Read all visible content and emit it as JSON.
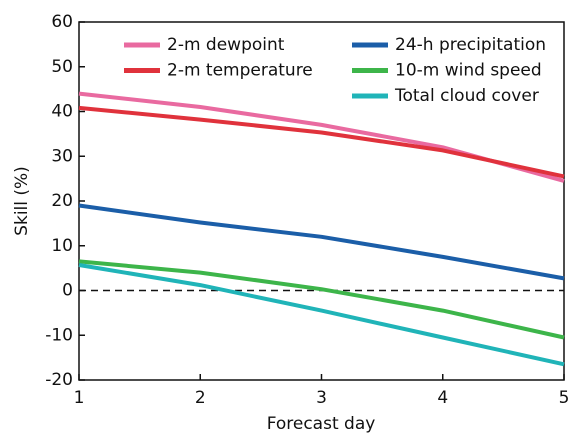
{
  "chart_data": {
    "type": "line",
    "x_label": "Forecast day",
    "y_label": "Skill (%)",
    "x": [
      1,
      2,
      3,
      4,
      5
    ],
    "xlim": [
      1,
      5
    ],
    "xticks": [
      1,
      2,
      3,
      4,
      5
    ],
    "ylim": [
      -20,
      60
    ],
    "yticks": [
      -20,
      -10,
      0,
      10,
      20,
      30,
      40,
      50,
      60
    ],
    "reference_line": 0,
    "series": [
      {
        "name": "2-m dewpoint",
        "color": "#e96aa0",
        "values": [
          44,
          41,
          37,
          32,
          24.5
        ]
      },
      {
        "name": "2-m temperature",
        "color": "#e0323c",
        "values": [
          40.8,
          38.2,
          35.3,
          31.3,
          25.5
        ]
      },
      {
        "name": "24-h precipitation",
        "color": "#1b5ea8",
        "values": [
          19,
          15.2,
          12,
          7.5,
          2.7
        ]
      },
      {
        "name": "10-m wind speed",
        "color": "#3db54a",
        "values": [
          6.5,
          4,
          0.3,
          -4.5,
          -10.5
        ]
      },
      {
        "name": "Total cloud cover",
        "color": "#20b4b8",
        "values": [
          5.7,
          1.2,
          -4.5,
          -10.5,
          -16.5
        ]
      }
    ]
  }
}
